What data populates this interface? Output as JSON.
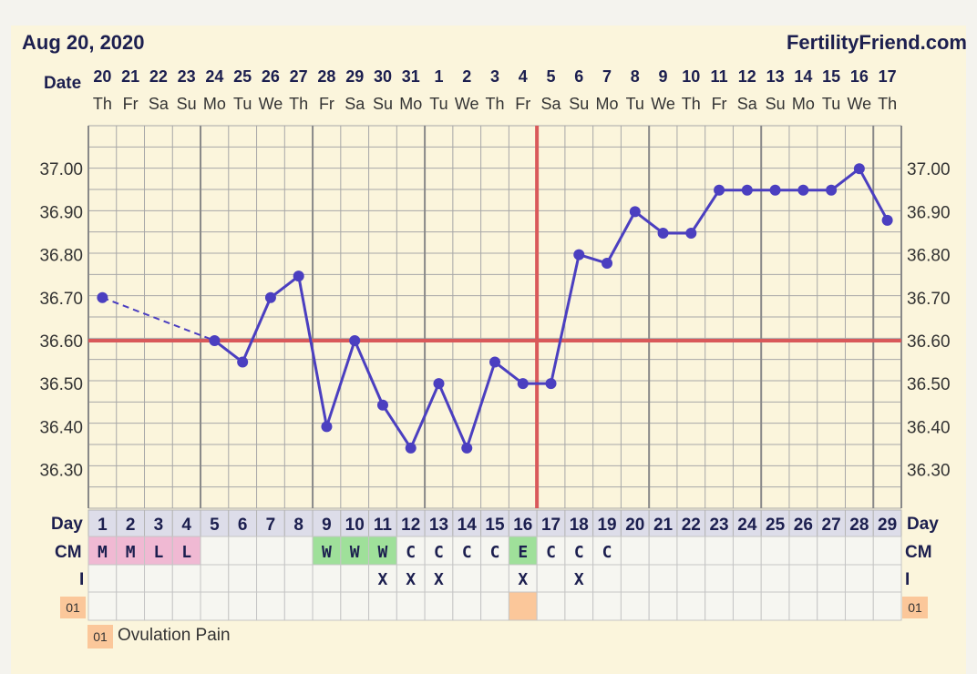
{
  "header": {
    "date_title": "Aug 20, 2020",
    "site": "FertilityFriend.com"
  },
  "labels": {
    "date": "Date",
    "day": "Day",
    "cm": "CM",
    "intercourse": "I",
    "legend_code": "01",
    "legend_text": "Ovulation Pain"
  },
  "colors": {
    "background": "#fbf5dc",
    "line": "#4b3fc0",
    "coverline": "#d9595a",
    "menses": "#f0b9d3",
    "fertile_cm": "#9fe09a",
    "symptom": "#fbc79a"
  },
  "chart_data": {
    "type": "line",
    "dates": [
      "20",
      "21",
      "22",
      "23",
      "24",
      "25",
      "26",
      "27",
      "28",
      "29",
      "30",
      "31",
      "1",
      "2",
      "3",
      "4",
      "5",
      "6",
      "7",
      "8",
      "9",
      "10",
      "11",
      "12",
      "13",
      "14",
      "15",
      "16",
      "17"
    ],
    "weekdays": [
      "Th",
      "Fr",
      "Sa",
      "Su",
      "Mo",
      "Tu",
      "We",
      "Th",
      "Fr",
      "Sa",
      "Su",
      "Mo",
      "Tu",
      "We",
      "Th",
      "Fr",
      "Sa",
      "Su",
      "Mo",
      "Tu",
      "We",
      "Th",
      "Fr",
      "Sa",
      "Su",
      "Mo",
      "Tu",
      "We",
      "Th"
    ],
    "cycle_days": [
      "1",
      "2",
      "3",
      "4",
      "5",
      "6",
      "7",
      "8",
      "9",
      "10",
      "11",
      "12",
      "13",
      "14",
      "15",
      "16",
      "17",
      "18",
      "19",
      "20",
      "21",
      "22",
      "23",
      "24",
      "25",
      "26",
      "27",
      "28",
      "29"
    ],
    "temperatures": [
      36.7,
      null,
      null,
      null,
      36.6,
      36.55,
      36.7,
      36.75,
      36.4,
      36.6,
      36.45,
      36.35,
      36.5,
      36.35,
      36.55,
      36.5,
      36.5,
      36.8,
      36.78,
      36.9,
      36.85,
      36.85,
      36.95,
      36.95,
      36.95,
      36.95,
      36.95,
      37.0,
      36.88
    ],
    "y_ticks": [
      "37.00",
      "36.90",
      "36.80",
      "36.70",
      "36.60",
      "36.50",
      "36.40",
      "36.30"
    ],
    "ylim": [
      36.21,
      37.1
    ],
    "coverline": 36.6,
    "ovulation_day": 17,
    "cervical_mucus": [
      "M",
      "M",
      "L",
      "L",
      "",
      "",
      "",
      "",
      "W",
      "W",
      "W",
      "C",
      "C",
      "C",
      "C",
      "E",
      "C",
      "C",
      "C",
      "",
      "",
      "",
      "",
      "",
      "",
      "",
      "",
      "",
      ""
    ],
    "intercourse": [
      "",
      "",
      "",
      "",
      "",
      "",
      "",
      "",
      "",
      "",
      "X",
      "X",
      "X",
      "",
      "",
      "X",
      "",
      "X",
      "",
      "",
      "",
      "",
      "",
      "",
      "",
      "",
      "",
      "",
      ""
    ],
    "symptom_days": [
      16
    ],
    "grid": true
  }
}
